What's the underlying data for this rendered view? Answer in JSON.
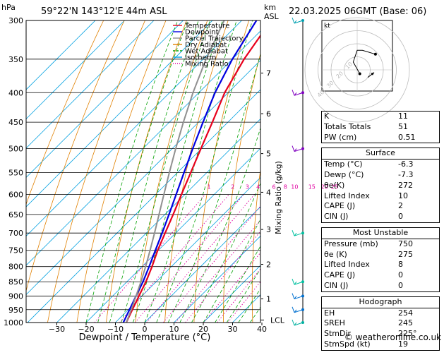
{
  "header": {
    "pressure_unit": "hPa",
    "location": "59°22'N  143°12'E  44m  ASL",
    "height_unit_1": "km",
    "height_unit_2": "ASL",
    "datetime": "22.03.2025  06GMT  (Base: 06)"
  },
  "legend": [
    {
      "label": "Temperature",
      "color": "#e8001c"
    },
    {
      "label": "Dewpoint",
      "color": "#0000e0"
    },
    {
      "label": "Parcel Trajectory",
      "color": "#909090"
    },
    {
      "label": "Dry Adiabat",
      "color": "#e08000"
    },
    {
      "label": "Wet Adiabat",
      "color": "#00a000"
    },
    {
      "label": "Isotherm",
      "color": "#00a0e0"
    },
    {
      "label": "Mixing Ratio",
      "color": "#e000a0"
    }
  ],
  "chart_data": {
    "type": "line",
    "xlabel": "Dewpoint / Temperature (°C)",
    "ylabel_right": "Mixing Ratio (g/kg)",
    "xlim": [
      -40,
      40
    ],
    "pressure_levels": [
      300,
      350,
      400,
      450,
      500,
      550,
      600,
      650,
      700,
      750,
      800,
      850,
      900,
      950,
      1000
    ],
    "x_ticks": [
      -30,
      -20,
      -10,
      0,
      10,
      20,
      30,
      40
    ],
    "km_ticks": [
      {
        "km": "1",
        "p": 910
      },
      {
        "km": "2",
        "p": 793
      },
      {
        "km": "3",
        "p": 690
      },
      {
        "km": "4",
        "p": 595
      },
      {
        "km": "5",
        "p": 510
      },
      {
        "km": "6",
        "p": 435
      },
      {
        "km": "7",
        "p": 370
      }
    ],
    "lcl_label": "LCL",
    "lcl_p": 990,
    "mixing_ratio_labels": [
      "1",
      "2",
      "3",
      "4",
      "6",
      "8",
      "10",
      "15",
      "20",
      "25"
    ],
    "mixing_ratio_label_p": 590,
    "series": [
      {
        "name": "Temperature",
        "color": "#e8001c",
        "points": [
          [
            1000,
            -6.3
          ],
          [
            950,
            -8.6
          ],
          [
            900,
            -11.0
          ],
          [
            850,
            -13.5
          ],
          [
            800,
            -16.6
          ],
          [
            750,
            -20.2
          ],
          [
            700,
            -23.6
          ],
          [
            650,
            -27.2
          ],
          [
            600,
            -31.2
          ],
          [
            550,
            -35.5
          ],
          [
            500,
            -40.2
          ],
          [
            450,
            -45.3
          ],
          [
            400,
            -51.2
          ],
          [
            350,
            -56.0
          ],
          [
            300,
            -60.0
          ]
        ]
      },
      {
        "name": "Dewpoint",
        "color": "#0000e0",
        "points": [
          [
            1000,
            -7.3
          ],
          [
            950,
            -9.6
          ],
          [
            900,
            -12.0
          ],
          [
            850,
            -14.5
          ],
          [
            800,
            -17.6
          ],
          [
            750,
            -21.0
          ],
          [
            700,
            -24.6
          ],
          [
            650,
            -28.6
          ],
          [
            600,
            -33.0
          ],
          [
            550,
            -37.8
          ],
          [
            500,
            -43.0
          ],
          [
            450,
            -48.5
          ],
          [
            400,
            -54.5
          ],
          [
            350,
            -60.0
          ],
          [
            300,
            -65.0
          ]
        ]
      },
      {
        "name": "Parcel Trajectory",
        "color": "#909090",
        "points": [
          [
            1000,
            -6.3
          ],
          [
            950,
            -9.0
          ],
          [
            900,
            -12.0
          ],
          [
            850,
            -15.2
          ],
          [
            800,
            -18.8
          ],
          [
            750,
            -22.8
          ],
          [
            700,
            -27.2
          ],
          [
            650,
            -32.0
          ],
          [
            600,
            -37.2
          ],
          [
            550,
            -42.8
          ],
          [
            500,
            -48.8
          ],
          [
            450,
            -55.2
          ],
          [
            400,
            -62.0
          ],
          [
            350,
            -69.0
          ],
          [
            300,
            -76.0
          ]
        ]
      }
    ]
  },
  "hodograph": {
    "unit": "kt",
    "ring_labels": [
      "10",
      "20",
      "30",
      "40"
    ],
    "trace_color": "#000000",
    "points": [
      [
        2,
        -3
      ],
      [
        -3,
        6
      ],
      [
        0,
        15
      ],
      [
        4,
        15
      ],
      [
        14,
        12
      ]
    ],
    "storm_motion": [
      13,
      -2
    ]
  },
  "indices": {
    "basic": [
      {
        "key": "K",
        "value": "11"
      },
      {
        "key": "Totals Totals",
        "value": "51"
      },
      {
        "key": "PW (cm)",
        "value": "0.51"
      }
    ],
    "surface": {
      "title": "Surface",
      "rows": [
        {
          "key": "Temp (°C)",
          "value": "-6.3"
        },
        {
          "key": "Dewp (°C)",
          "value": "-7.3"
        },
        {
          "key": "θe(K)",
          "value": "272"
        },
        {
          "key": "Lifted Index",
          "value": "10"
        },
        {
          "key": "CAPE (J)",
          "value": "2"
        },
        {
          "key": "CIN (J)",
          "value": "0"
        }
      ]
    },
    "most_unstable": {
      "title": "Most Unstable",
      "rows": [
        {
          "key": "Pressure (mb)",
          "value": "750"
        },
        {
          "key": "θe (K)",
          "value": "275"
        },
        {
          "key": "Lifted Index",
          "value": "8"
        },
        {
          "key": "CAPE (J)",
          "value": "0"
        },
        {
          "key": "CIN (J)",
          "value": "0"
        }
      ]
    },
    "hodograph_block": {
      "title": "Hodograph",
      "rows": [
        {
          "key": "EH",
          "value": "254"
        },
        {
          "key": "SREH",
          "value": "245"
        },
        {
          "key": "StmDir",
          "value": "225°"
        },
        {
          "key": "StmSpd (kt)",
          "value": "19"
        }
      ]
    }
  },
  "copyright": "© weatheronline.co.uk"
}
